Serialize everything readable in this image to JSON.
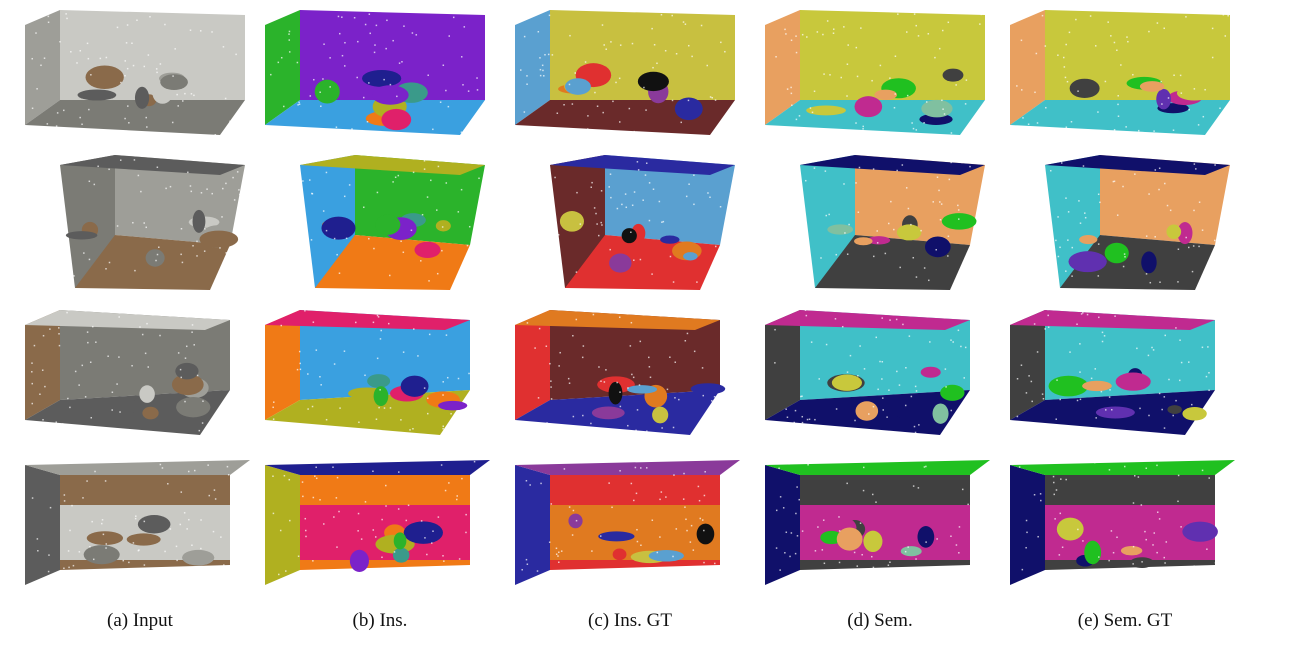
{
  "figure": {
    "captions": [
      "(a)  Input",
      "(b)  Ins.",
      "(c)  Ins. GT",
      "(d)  Sem.",
      "(e)  Sem. GT"
    ]
  },
  "colors": {
    "input": [
      "#c9c9c4",
      "#9e9e98",
      "#7b7b75",
      "#8a6a4a",
      "#5c5c5c"
    ],
    "ins": [
      "#7b22c9",
      "#2bb32b",
      "#3aa0e0",
      "#f07a16",
      "#b0b020",
      "#e0206a",
      "#1f1f8f",
      "#3a9a8a"
    ],
    "ins_gt": [
      "#c8c040",
      "#5aa0d0",
      "#6a2a2a",
      "#e03030",
      "#2a2aa0",
      "#e07a20",
      "#8a3a9a",
      "#111111"
    ],
    "sem": [
      "#c8c83c",
      "#e8a060",
      "#40c0c8",
      "#404040",
      "#10106a",
      "#c02a90",
      "#20c020",
      "#80c0a0"
    ],
    "sem_gt": [
      "#c8c83c",
      "#e8a060",
      "#40c0c8",
      "#404040",
      "#10106a",
      "#c02a90",
      "#20c020",
      "#6030b0"
    ]
  }
}
